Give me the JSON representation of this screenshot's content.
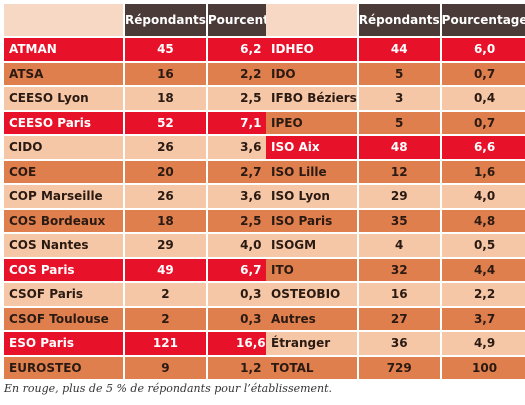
{
  "left_table": {
    "headers": [
      "",
      "Répondants",
      "Pourcentage"
    ],
    "rows": [
      {
        "name": "ATMAN",
        "respondents": "45",
        "percent": "6,2",
        "highlight": true
      },
      {
        "name": "ATSA",
        "respondents": "16",
        "percent": "2,2",
        "highlight": false
      },
      {
        "name": "CEESO Lyon",
        "respondents": "18",
        "percent": "2,5",
        "highlight": false
      },
      {
        "name": "CEESO Paris",
        "respondents": "52",
        "percent": "7,1",
        "highlight": true
      },
      {
        "name": "CIDO",
        "respondents": "26",
        "percent": "3,6",
        "highlight": false
      },
      {
        "name": "COE",
        "respondents": "20",
        "percent": "2,7",
        "highlight": false
      },
      {
        "name": "COP Marseille",
        "respondents": "26",
        "percent": "3,6",
        "highlight": false
      },
      {
        "name": "COS Bordeaux",
        "respondents": "18",
        "percent": "2,5",
        "highlight": false
      },
      {
        "name": "COS Nantes",
        "respondents": "29",
        "percent": "4,0",
        "highlight": false
      },
      {
        "name": "COS Paris",
        "respondents": "49",
        "percent": "6,7",
        "highlight": true
      },
      {
        "name": "CSOF Paris",
        "respondents": "2",
        "percent": "0,3",
        "highlight": false
      },
      {
        "name": "CSOF Toulouse",
        "respondents": "2",
        "percent": "0,3",
        "highlight": false
      },
      {
        "name": "ESO Paris",
        "respondents": "121",
        "percent": "16,6",
        "highlight": true
      },
      {
        "name": "EUROSTEO",
        "respondents": "9",
        "percent": "1,2",
        "highlight": false
      }
    ]
  },
  "right_table": {
    "headers": [
      "",
      "Répondants",
      "Pourcentage"
    ],
    "rows": [
      {
        "name": "IDHEO",
        "respondents": "44",
        "percent": "6,0",
        "highlight": true
      },
      {
        "name": "IDO",
        "respondents": "5",
        "percent": "0,7",
        "highlight": false
      },
      {
        "name": "IFBO Béziers",
        "respondents": "3",
        "percent": "0,4",
        "highlight": false
      },
      {
        "name": "IPEO",
        "respondents": "5",
        "percent": "0,7",
        "highlight": false
      },
      {
        "name": "ISO Aix",
        "respondents": "48",
        "percent": "6,6",
        "highlight": true
      },
      {
        "name": "ISO Lille",
        "respondents": "12",
        "percent": "1,6",
        "highlight": false
      },
      {
        "name": "ISO Lyon",
        "respondents": "29",
        "percent": "4,0",
        "highlight": false
      },
      {
        "name": "ISO Paris",
        "respondents": "35",
        "percent": "4,8",
        "highlight": false
      },
      {
        "name": "ISOGM",
        "respondents": "4",
        "percent": "0,5",
        "highlight": false
      },
      {
        "name": "ITO",
        "respondents": "32",
        "percent": "4,4",
        "highlight": false
      },
      {
        "name": "OSTEOBIO",
        "respondents": "16",
        "percent": "2,2",
        "highlight": false
      },
      {
        "name": "Autres",
        "respondents": "27",
        "percent": "3,7",
        "highlight": false
      },
      {
        "name": "Étranger",
        "respondents": "36",
        "percent": "4,9",
        "highlight": false
      },
      {
        "name": "TOTAL",
        "respondents": "729",
        "percent": "100",
        "highlight": false
      }
    ]
  },
  "caption": "En rouge, plus de 5 % de répondants pour l’établissement.",
  "colors": {
    "highlight_red": "#e8112a",
    "header_dark": "#4a3a38",
    "row_light": "#f6c7a6",
    "row_dark": "#e07f4e"
  }
}
